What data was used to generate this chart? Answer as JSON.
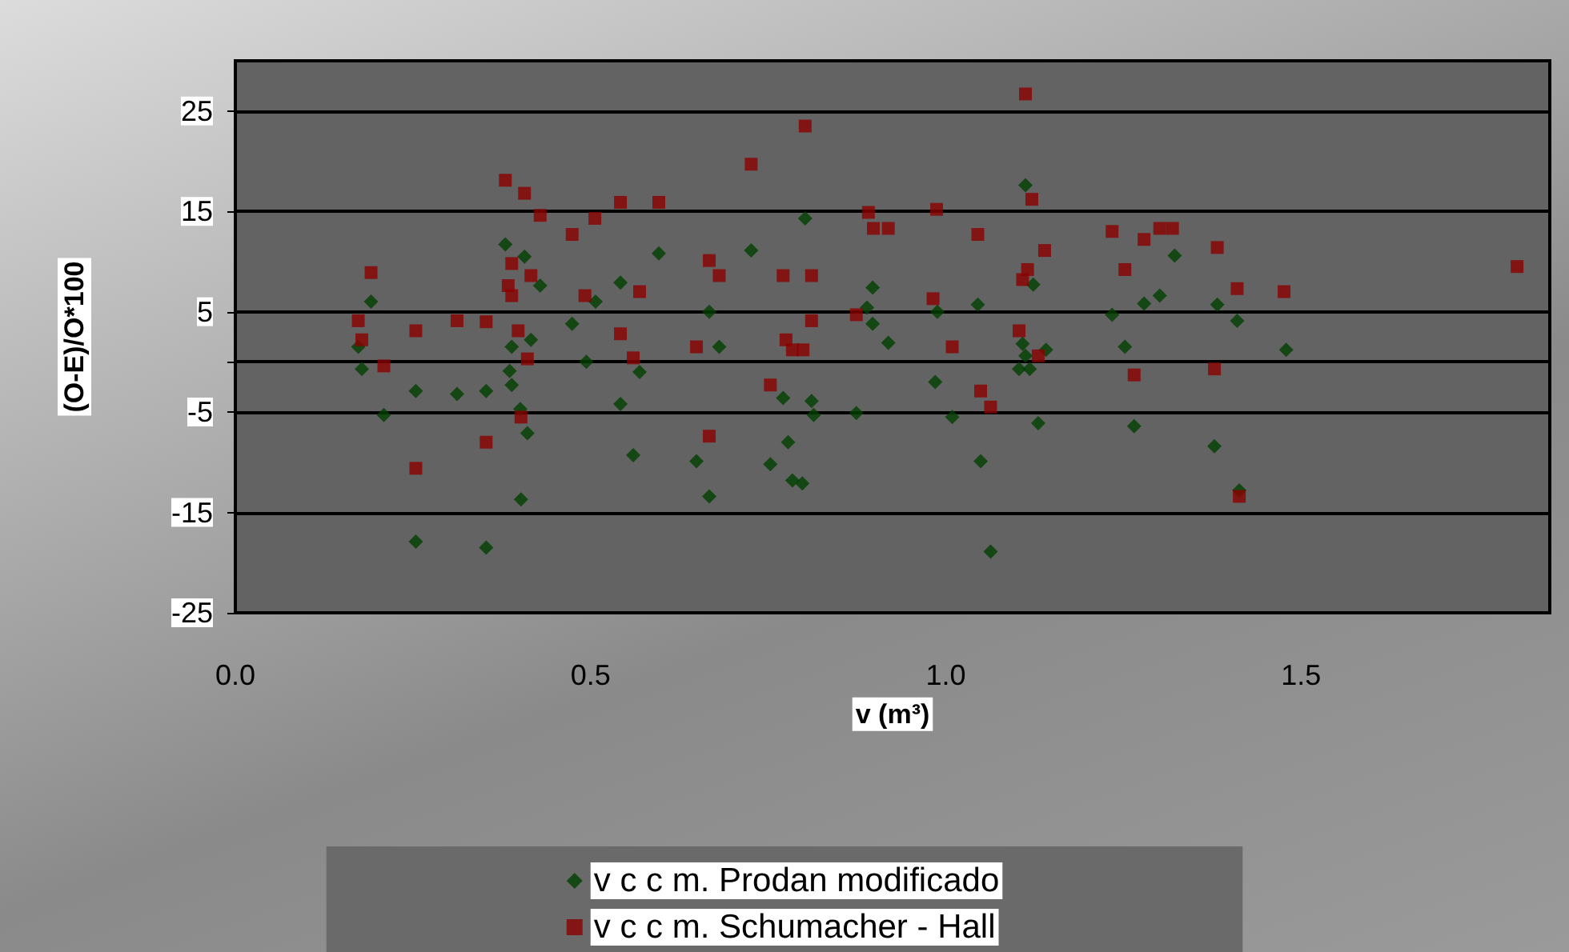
{
  "chart_data": {
    "type": "scatter",
    "xlabel": "v (m³)",
    "ylabel": "(O-E)/O*100",
    "xlim": [
      0,
      1.85
    ],
    "xticks": [
      {
        "value": 0,
        "label": "0.0"
      },
      0.5,
      {
        "value": 1,
        "label": "1.0"
      },
      1.5
    ],
    "ylim": [
      -25,
      30
    ],
    "yticks": [
      -25,
      -15,
      -5,
      {
        "value": 0,
        "label": null
      },
      5,
      15,
      25
    ],
    "grid": "y",
    "legend": "bottom",
    "series": [
      {
        "name": "v c c m. Prodan modificado",
        "color": "#004000",
        "marker": "diamond",
        "x": [
          0.38,
          0.407,
          0.429,
          0.191,
          0.173,
          0.178,
          0.209,
          0.254,
          0.312,
          0.353,
          0.389,
          0.416,
          0.386,
          0.389,
          0.401,
          0.411,
          0.402,
          0.254,
          0.353,
          0.474,
          0.494,
          0.507,
          0.542,
          0.596,
          0.542,
          0.569,
          0.56,
          1.112,
          0.802,
          0.726,
          0.897,
          0.889,
          0.897,
          0.919,
          0.988,
          1.045,
          1.123,
          0.667,
          0.681,
          0.985,
          1.108,
          1.141,
          1.112,
          1.103,
          1.118,
          0.771,
          0.811,
          0.814,
          0.874,
          1.009,
          1.13,
          0.778,
          0.649,
          0.753,
          0.784,
          0.798,
          1.049,
          0.667,
          1.063,
          1.322,
          1.301,
          1.279,
          1.234,
          1.382,
          1.41,
          1.252,
          1.479,
          1.265,
          1.378,
          1.413
        ],
        "values": [
          11.7,
          10.5,
          7.6,
          6.0,
          1.5,
          -0.7,
          -5.3,
          -2.9,
          -3.2,
          -2.9,
          1.5,
          2.2,
          -0.9,
          -2.3,
          -4.7,
          -7.1,
          -13.7,
          -17.9,
          -18.5,
          3.8,
          0.0,
          6.0,
          7.9,
          10.8,
          -4.2,
          -1.0,
          -9.3,
          17.6,
          14.3,
          11.1,
          7.4,
          5.4,
          3.8,
          1.9,
          5.0,
          5.7,
          7.7,
          5.0,
          1.5,
          -2.0,
          1.8,
          1.2,
          0.6,
          -0.7,
          -0.7,
          -3.6,
          -3.9,
          -5.3,
          -5.1,
          -5.5,
          -6.1,
          -8.0,
          -9.9,
          -10.2,
          -11.8,
          -12.1,
          -9.9,
          -13.4,
          -18.9,
          10.6,
          6.6,
          5.8,
          4.7,
          5.7,
          4.1,
          1.5,
          1.2,
          -6.4,
          -8.4,
          -12.8
        ]
      },
      {
        "name": "v c c m. Schumacher - Hall",
        "color": "#8b0000",
        "marker": "square",
        "x": [
          0.38,
          0.407,
          0.429,
          0.542,
          0.596,
          0.506,
          0.474,
          0.191,
          0.389,
          0.416,
          0.384,
          0.389,
          0.492,
          0.569,
          0.173,
          0.178,
          0.254,
          0.312,
          0.353,
          0.398,
          0.542,
          0.209,
          0.411,
          0.56,
          0.402,
          0.353,
          0.254,
          1.112,
          0.802,
          0.726,
          0.891,
          0.987,
          0.898,
          0.919,
          1.045,
          1.121,
          1.139,
          0.667,
          0.681,
          0.771,
          0.811,
          1.115,
          1.108,
          0.982,
          0.874,
          0.811,
          0.649,
          0.775,
          0.784,
          0.799,
          1.009,
          1.103,
          1.13,
          0.753,
          1.049,
          1.063,
          0.667,
          1.234,
          1.279,
          1.301,
          1.319,
          1.382,
          1.252,
          1.41,
          1.476,
          1.804,
          1.265,
          1.378,
          1.413
        ],
        "values": [
          18.1,
          16.8,
          14.6,
          15.9,
          15.9,
          14.3,
          12.7,
          8.9,
          9.8,
          8.6,
          7.6,
          6.6,
          6.6,
          7.0,
          4.1,
          2.2,
          3.1,
          4.1,
          4.0,
          3.1,
          2.8,
          -0.4,
          0.3,
          0.4,
          -5.5,
          -8.0,
          -10.6,
          26.7,
          23.5,
          19.7,
          14.9,
          15.2,
          13.3,
          13.3,
          12.7,
          16.2,
          11.1,
          10.1,
          8.6,
          8.6,
          8.6,
          9.2,
          8.2,
          6.3,
          4.7,
          4.1,
          1.5,
          2.2,
          1.2,
          1.2,
          1.5,
          3.1,
          0.6,
          -2.3,
          -2.9,
          -4.5,
          -7.4,
          13.0,
          12.2,
          13.3,
          13.3,
          11.4,
          9.2,
          7.3,
          7.0,
          9.5,
          -1.3,
          -0.7,
          -13.4
        ]
      }
    ]
  }
}
